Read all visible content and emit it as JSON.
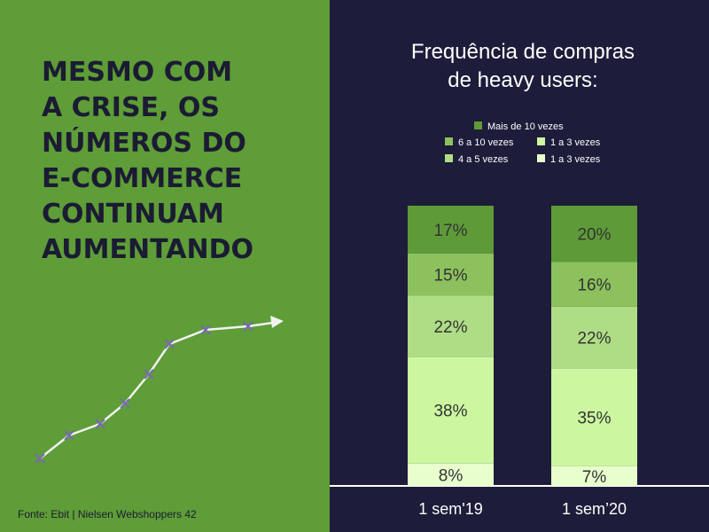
{
  "headline": [
    "MESMO COM",
    "A CRISE, OS",
    "NÚMEROS DO",
    "E-COMMERCE",
    "CONTINUAM",
    "AUMENTANDO"
  ],
  "source": "Fonte: Ebit | Nielsen Webshoppers 42",
  "chart_data": {
    "type": "stacked-bar",
    "title": [
      "Frequência de compras",
      "de heavy users:"
    ],
    "categories": [
      "1 sem'19",
      "1 sem’20"
    ],
    "ylim": [
      0,
      100
    ],
    "series": [
      {
        "name": "Mais de 10 vezes",
        "color": "#5e9b38",
        "values": [
          17,
          20
        ],
        "value_labels": [
          "17%",
          "20%"
        ]
      },
      {
        "name": "6 a 10 vezes",
        "color": "#8cc15e",
        "values": [
          15,
          16
        ],
        "value_labels": [
          "15%",
          "16%"
        ]
      },
      {
        "name": "4 a 5 vezes",
        "color": "#afdd86",
        "values": [
          22,
          22
        ],
        "value_labels": [
          "22%",
          "22%"
        ]
      },
      {
        "name": "1 a 3 vezes",
        "color": "#ccf7a0",
        "values": [
          38,
          35
        ],
        "value_labels": [
          "38%",
          "35%"
        ]
      },
      {
        "name": "1 a 3 vezes",
        "color": "#e8ffcd",
        "values": [
          8,
          7
        ],
        "value_labels": [
          "8%",
          "7%"
        ]
      }
    ]
  }
}
